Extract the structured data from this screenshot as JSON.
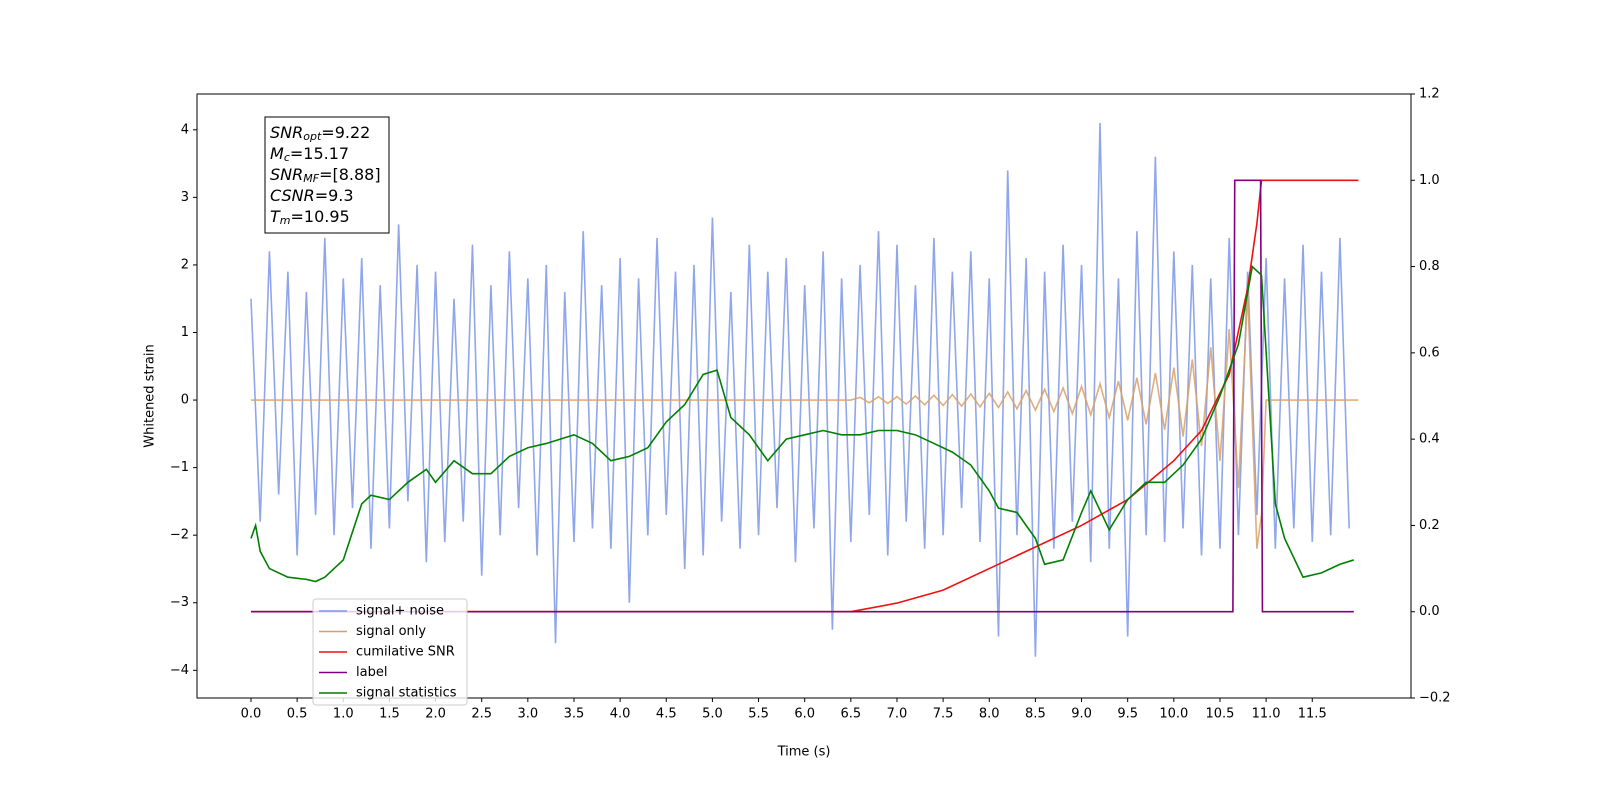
{
  "chart_data": {
    "type": "line",
    "xlabel": "Time (s)",
    "ylabel": "Whitened strain",
    "xlim": [
      -0.585,
      12.57
    ],
    "ylim": [
      -4.41,
      4.53
    ],
    "y2lim": [
      -0.2,
      1.2
    ],
    "xticks": [
      {
        "value": 0,
        "label": "0.0"
      },
      {
        "value": 0.5,
        "label": "0.5"
      },
      {
        "value": 1,
        "label": "1.0"
      },
      {
        "value": 1.5,
        "label": "1.5"
      },
      {
        "value": 2,
        "label": "2.0"
      },
      {
        "value": 2.5,
        "label": "2.5"
      },
      {
        "value": 3,
        "label": "3.0"
      },
      {
        "value": 3.5,
        "label": "3.5"
      },
      {
        "value": 4,
        "label": "4.0"
      },
      {
        "value": 4.5,
        "label": "4.5"
      },
      {
        "value": 5,
        "label": "5.0"
      },
      {
        "value": 5.5,
        "label": "5.5"
      },
      {
        "value": 6,
        "label": "6.0"
      },
      {
        "value": 6.5,
        "label": "6.5"
      },
      {
        "value": 7,
        "label": "7.0"
      },
      {
        "value": 7.5,
        "label": "7.5"
      },
      {
        "value": 8,
        "label": "8.0"
      },
      {
        "value": 8.5,
        "label": "8.5"
      },
      {
        "value": 9,
        "label": "9.0"
      },
      {
        "value": 9.5,
        "label": "9.5"
      },
      {
        "value": 10,
        "label": "10.0"
      },
      {
        "value": 10.5,
        "label": "10.5"
      },
      {
        "value": 11,
        "label": "11.0"
      },
      {
        "value": 11.5,
        "label": "11.5"
      }
    ],
    "yticks": [
      {
        "value": -4,
        "label": "−4"
      },
      {
        "value": -3,
        "label": "−3"
      },
      {
        "value": -2,
        "label": "−2"
      },
      {
        "value": -1,
        "label": "−1"
      },
      0,
      1,
      2,
      3,
      4
    ],
    "y2ticks": [
      {
        "value": -0.2,
        "label": "−0.2"
      },
      {
        "value": 0,
        "label": "0.0"
      },
      {
        "value": 0.2,
        "label": "0.2"
      },
      {
        "value": 0.4,
        "label": "0.4"
      },
      {
        "value": 0.6,
        "label": "0.6"
      },
      {
        "value": 0.8,
        "label": "0.8"
      },
      {
        "value": 1,
        "label": "1.0"
      },
      {
        "value": 1.2,
        "label": "1.2"
      }
    ],
    "legend": "lower left",
    "annotation": [
      {
        "main": "SNR",
        "sub": "opt",
        "rest": "=9.22"
      },
      {
        "main": "M",
        "sub": "c",
        "rest": "=15.17"
      },
      {
        "main": "SNR",
        "sub": "MF",
        "rest": "=[8.88]"
      },
      {
        "main": "CSNR",
        "sub": "",
        "rest": "=9.3"
      },
      {
        "main": "T",
        "sub": "m",
        "rest": "=10.95"
      }
    ],
    "series": [
      {
        "name": "signal+ noise",
        "color": "#7b96e8",
        "x": [
          0.0,
          0.1,
          0.2,
          0.3,
          0.4,
          0.5,
          0.6,
          0.7,
          0.8,
          0.9,
          1.0,
          1.1,
          1.2,
          1.3,
          1.4,
          1.5,
          1.6,
          1.7,
          1.8,
          1.9,
          2.0,
          2.1,
          2.2,
          2.3,
          2.4,
          2.5,
          2.6,
          2.7,
          2.8,
          2.9,
          3.0,
          3.1,
          3.2,
          3.3,
          3.4,
          3.5,
          3.6,
          3.7,
          3.8,
          3.9,
          4.0,
          4.1,
          4.2,
          4.3,
          4.4,
          4.5,
          4.6,
          4.7,
          4.8,
          4.9,
          5.0,
          5.1,
          5.2,
          5.3,
          5.4,
          5.5,
          5.6,
          5.7,
          5.8,
          5.9,
          6.0,
          6.1,
          6.2,
          6.3,
          6.4,
          6.5,
          6.6,
          6.7,
          6.8,
          6.9,
          7.0,
          7.1,
          7.2,
          7.3,
          7.4,
          7.5,
          7.6,
          7.7,
          7.8,
          7.9,
          8.0,
          8.1,
          8.2,
          8.3,
          8.4,
          8.5,
          8.6,
          8.7,
          8.8,
          8.9,
          9.0,
          9.1,
          9.2,
          9.3,
          9.4,
          9.5,
          9.6,
          9.7,
          9.8,
          9.9,
          10.0,
          10.1,
          10.2,
          10.3,
          10.4,
          10.5,
          10.6,
          10.7,
          10.8,
          10.9,
          11.0,
          11.1,
          11.2,
          11.3,
          11.4,
          11.5,
          11.6,
          11.7,
          11.8,
          11.9
        ],
        "values": [
          1.5,
          -1.8,
          2.2,
          -1.4,
          1.9,
          -2.3,
          1.6,
          -1.7,
          2.4,
          -2.0,
          1.8,
          -1.6,
          2.1,
          -2.2,
          1.7,
          -1.9,
          2.6,
          -1.5,
          2.0,
          -2.4,
          1.9,
          -2.1,
          1.5,
          -1.8,
          2.3,
          -2.6,
          1.7,
          -2.0,
          2.2,
          -1.6,
          1.8,
          -2.3,
          2.0,
          -3.6,
          1.6,
          -2.1,
          2.5,
          -1.9,
          1.7,
          -2.2,
          2.1,
          -3.0,
          1.8,
          -2.0,
          2.4,
          -1.7,
          1.9,
          -2.5,
          2.0,
          -2.3,
          2.7,
          -1.8,
          1.6,
          -2.2,
          2.3,
          -2.0,
          1.9,
          -1.6,
          2.1,
          -2.4,
          1.7,
          -1.9,
          2.2,
          -3.4,
          1.8,
          -2.1,
          2.0,
          -1.7,
          2.5,
          -2.3,
          2.3,
          -1.8,
          1.7,
          -2.2,
          2.4,
          -2.0,
          1.9,
          -1.6,
          2.2,
          -2.1,
          1.8,
          -3.5,
          3.4,
          -2.0,
          2.1,
          -3.8,
          1.9,
          -2.2,
          2.3,
          -1.8,
          2.0,
          -2.4,
          4.1,
          -2.2,
          1.8,
          -3.5,
          2.5,
          -2.0,
          3.6,
          -2.1,
          2.2,
          -1.9,
          2.0,
          -2.3,
          1.8,
          -2.2,
          2.4,
          -2.0,
          1.9,
          -1.7,
          2.1,
          -2.2,
          1.8,
          -1.9,
          2.3,
          -2.1,
          1.9,
          -2.0,
          2.4,
          -1.9
        ]
      },
      {
        "name": "signal only",
        "color": "#d9a066",
        "x": [
          0.0,
          6.5,
          6.6,
          6.7,
          6.8,
          6.9,
          7.0,
          7.1,
          7.2,
          7.3,
          7.4,
          7.5,
          7.6,
          7.7,
          7.8,
          7.9,
          8.0,
          8.1,
          8.2,
          8.3,
          8.4,
          8.5,
          8.6,
          8.7,
          8.8,
          8.9,
          9.0,
          9.1,
          9.2,
          9.3,
          9.4,
          9.5,
          9.6,
          9.7,
          9.8,
          9.9,
          10.0,
          10.1,
          10.2,
          10.3,
          10.4,
          10.5,
          10.6,
          10.7,
          10.8,
          10.9,
          10.95,
          11.0,
          12.0
        ],
        "values": [
          0,
          0,
          0.04,
          -0.04,
          0.05,
          -0.05,
          0.05,
          -0.06,
          0.06,
          -0.07,
          0.07,
          -0.08,
          0.08,
          -0.09,
          0.09,
          -0.1,
          0.1,
          -0.11,
          0.12,
          -0.13,
          0.14,
          -0.15,
          0.16,
          -0.17,
          0.18,
          -0.2,
          0.2,
          -0.22,
          0.24,
          -0.26,
          0.28,
          -0.3,
          0.33,
          -0.36,
          0.4,
          -0.44,
          0.48,
          -0.54,
          0.6,
          -0.68,
          0.78,
          -0.9,
          1.05,
          -1.3,
          1.6,
          -2.2,
          -1.7,
          0,
          0
        ]
      },
      {
        "name": "cumilative SNR",
        "color": "#ee1111",
        "axis": "y2",
        "x": [
          0,
          6.5,
          7.0,
          7.5,
          8.0,
          8.5,
          9.0,
          9.5,
          10.0,
          10.3,
          10.6,
          10.8,
          10.9,
          10.95,
          12.0
        ],
        "values": [
          0,
          0,
          0.02,
          0.05,
          0.1,
          0.15,
          0.2,
          0.26,
          0.35,
          0.42,
          0.55,
          0.75,
          0.9,
          1.0,
          1.0
        ]
      },
      {
        "name": "label",
        "color": "#800080",
        "axis": "y2",
        "x": [
          0,
          10.64,
          10.66,
          10.94,
          10.96,
          11.95
        ],
        "values": [
          0,
          0,
          1,
          1,
          0,
          0
        ]
      },
      {
        "name": "signal statistics",
        "color": "#008000",
        "axis": "y2",
        "x": [
          0,
          0.05,
          0.1,
          0.2,
          0.4,
          0.6,
          0.7,
          0.8,
          1.0,
          1.2,
          1.3,
          1.5,
          1.7,
          1.9,
          2.0,
          2.2,
          2.4,
          2.6,
          2.8,
          3.0,
          3.2,
          3.5,
          3.7,
          3.9,
          4.1,
          4.3,
          4.5,
          4.7,
          4.9,
          5.05,
          5.2,
          5.4,
          5.6,
          5.8,
          6.0,
          6.2,
          6.4,
          6.6,
          6.8,
          7.0,
          7.2,
          7.4,
          7.6,
          7.8,
          8.0,
          8.1,
          8.3,
          8.5,
          8.6,
          8.8,
          9.0,
          9.1,
          9.3,
          9.5,
          9.7,
          9.9,
          10.1,
          10.3,
          10.5,
          10.7,
          10.85,
          10.95,
          11.1,
          11.2,
          11.4,
          11.6,
          11.8,
          11.95
        ],
        "values": [
          0.17,
          0.2,
          0.14,
          0.1,
          0.08,
          0.075,
          0.07,
          0.08,
          0.12,
          0.25,
          0.27,
          0.26,
          0.3,
          0.33,
          0.3,
          0.35,
          0.32,
          0.32,
          0.36,
          0.38,
          0.39,
          0.41,
          0.39,
          0.35,
          0.36,
          0.38,
          0.44,
          0.48,
          0.55,
          0.56,
          0.45,
          0.41,
          0.35,
          0.4,
          0.41,
          0.42,
          0.41,
          0.41,
          0.42,
          0.42,
          0.41,
          0.39,
          0.37,
          0.34,
          0.28,
          0.24,
          0.23,
          0.17,
          0.11,
          0.12,
          0.23,
          0.28,
          0.19,
          0.26,
          0.3,
          0.3,
          0.34,
          0.4,
          0.5,
          0.62,
          0.8,
          0.78,
          0.25,
          0.17,
          0.08,
          0.09,
          0.11,
          0.12
        ]
      }
    ]
  }
}
